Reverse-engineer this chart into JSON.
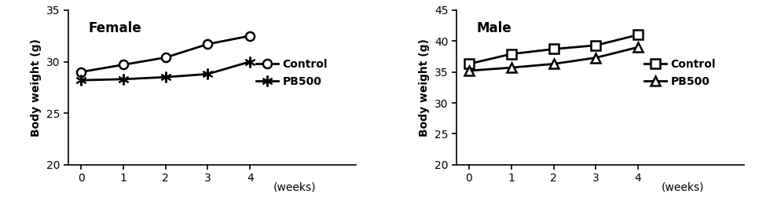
{
  "female": {
    "title": "Female",
    "weeks": [
      0,
      1,
      2,
      3,
      4
    ],
    "control": [
      29.0,
      29.7,
      30.4,
      31.7,
      32.5
    ],
    "pb500": [
      28.2,
      28.3,
      28.5,
      28.8,
      30.0
    ],
    "ylim": [
      20,
      35
    ],
    "yticks": [
      20,
      25,
      30,
      35
    ],
    "ylabel": "Body weight (g)"
  },
  "male": {
    "title": "Male",
    "weeks": [
      0,
      1,
      2,
      3,
      4
    ],
    "control": [
      36.3,
      37.9,
      38.7,
      39.3,
      41.0
    ],
    "pb500": [
      35.2,
      35.7,
      36.3,
      37.3,
      39.0
    ],
    "ylim": [
      20,
      45
    ],
    "yticks": [
      20,
      25,
      30,
      35,
      40,
      45
    ],
    "ylabel": "Body weight (g)"
  },
  "line_color": "#000000",
  "line_width": 2.0,
  "marker_size": 8,
  "xlabel_text": "(weeks)",
  "legend_control": "Control",
  "legend_pb500": "PB500",
  "font_size": 10,
  "title_font_size": 12,
  "xlim": [
    -0.3,
    6.5
  ]
}
